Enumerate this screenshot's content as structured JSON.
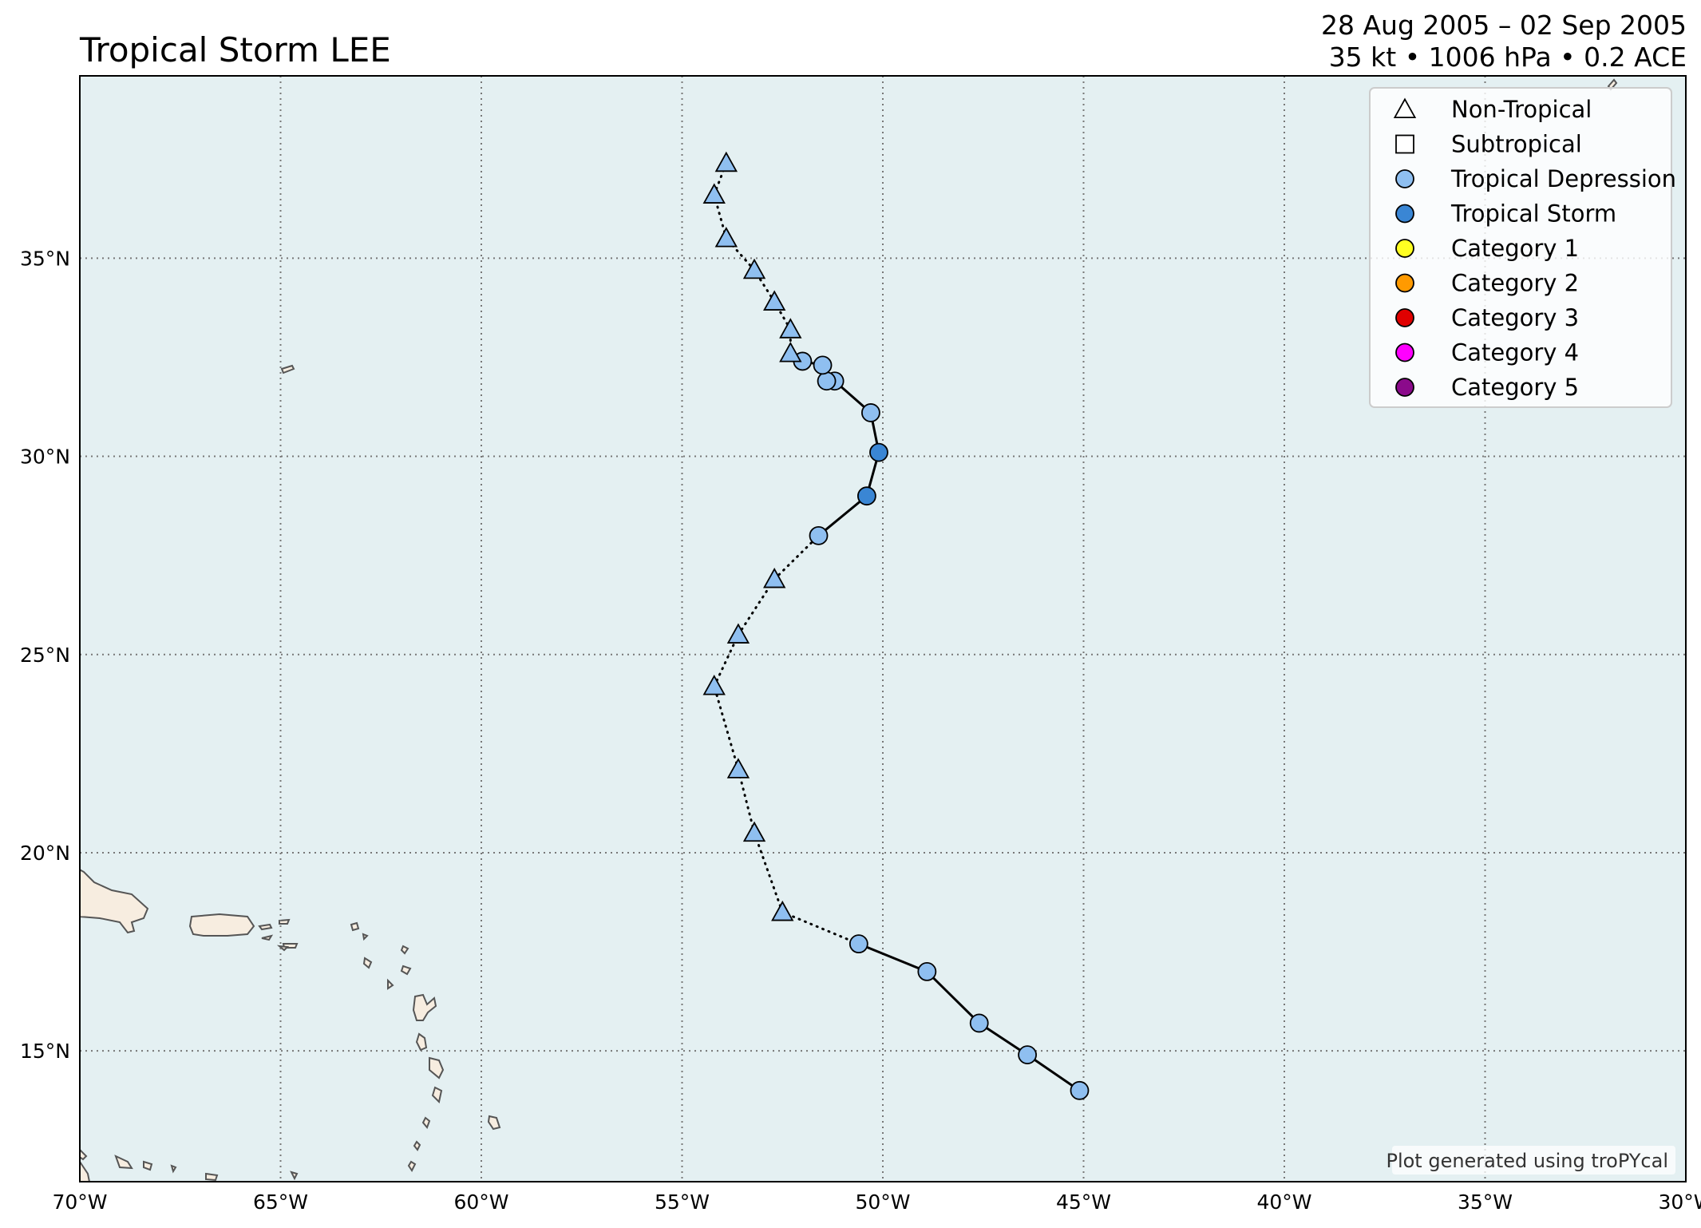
{
  "header": {
    "title": "Tropical Storm LEE",
    "date_range": "28 Aug 2005 – 02 Sep 2005",
    "stats": "35 kt • 1006 hPa • 0.2 ACE"
  },
  "credit": "Plot generated using troPYcal",
  "colors": {
    "ocean": "#e4f0f2",
    "land": "#f7ede0",
    "coast": "#555555",
    "grid": "#777777",
    "track": "#000000"
  },
  "map": {
    "lon_range": [
      -70,
      -30
    ],
    "lat_range": [
      11.7,
      39.6
    ],
    "lon_ticks": [
      {
        "value": -70,
        "label": "70°W"
      },
      {
        "value": -65,
        "label": "65°W"
      },
      {
        "value": -60,
        "label": "60°W"
      },
      {
        "value": -55,
        "label": "55°W"
      },
      {
        "value": -50,
        "label": "50°W"
      },
      {
        "value": -45,
        "label": "45°W"
      },
      {
        "value": -40,
        "label": "40°W"
      },
      {
        "value": -35,
        "label": "35°W"
      },
      {
        "value": -30,
        "label": "30°W"
      }
    ],
    "lat_ticks": [
      {
        "value": 15,
        "label": "15°N"
      },
      {
        "value": 20,
        "label": "20°N"
      },
      {
        "value": 25,
        "label": "25°N"
      },
      {
        "value": 30,
        "label": "30°N"
      },
      {
        "value": 35,
        "label": "35°N"
      }
    ],
    "grid": true
  },
  "legend": {
    "placement": "top-right",
    "items": [
      {
        "label": "Non-Tropical",
        "marker": "triangle",
        "color": "#ffffff"
      },
      {
        "label": "Subtropical",
        "marker": "square",
        "color": "#ffffff"
      },
      {
        "label": "Tropical Depression",
        "marker": "circle",
        "color": "#8fbff0"
      },
      {
        "label": "Tropical Storm",
        "marker": "circle",
        "color": "#3a86d4"
      },
      {
        "label": "Category 1",
        "marker": "circle",
        "color": "#ffff22"
      },
      {
        "label": "Category 2",
        "marker": "circle",
        "color": "#ff9a00"
      },
      {
        "label": "Category 3",
        "marker": "circle",
        "color": "#e00000"
      },
      {
        "label": "Category 4",
        "marker": "circle",
        "color": "#ff00ff"
      },
      {
        "label": "Category 5",
        "marker": "circle",
        "color": "#8b0a8b"
      }
    ]
  },
  "track": [
    {
      "lon": -45.1,
      "lat": 14.0,
      "type": "TD"
    },
    {
      "lon": -46.4,
      "lat": 14.9,
      "type": "TD"
    },
    {
      "lon": -47.6,
      "lat": 15.7,
      "type": "TD"
    },
    {
      "lon": -48.9,
      "lat": 17.0,
      "type": "TD"
    },
    {
      "lon": -50.6,
      "lat": 17.7,
      "type": "TD"
    },
    {
      "lon": -52.5,
      "lat": 18.5,
      "type": "NT"
    },
    {
      "lon": -53.2,
      "lat": 20.5,
      "type": "NT"
    },
    {
      "lon": -53.6,
      "lat": 22.1,
      "type": "NT"
    },
    {
      "lon": -54.2,
      "lat": 24.2,
      "type": "NT"
    },
    {
      "lon": -53.6,
      "lat": 25.5,
      "type": "NT"
    },
    {
      "lon": -52.7,
      "lat": 26.9,
      "type": "NT"
    },
    {
      "lon": -51.6,
      "lat": 28.0,
      "type": "TD"
    },
    {
      "lon": -50.4,
      "lat": 29.0,
      "type": "TS"
    },
    {
      "lon": -50.1,
      "lat": 30.1,
      "type": "TS"
    },
    {
      "lon": -50.3,
      "lat": 31.1,
      "type": "TD"
    },
    {
      "lon": -51.2,
      "lat": 31.9,
      "type": "TD"
    },
    {
      "lon": -51.4,
      "lat": 31.9,
      "type": "TD"
    },
    {
      "lon": -51.5,
      "lat": 32.3,
      "type": "TD"
    },
    {
      "lon": -52.0,
      "lat": 32.4,
      "type": "TD"
    },
    {
      "lon": -52.3,
      "lat": 32.6,
      "type": "NT"
    },
    {
      "lon": -52.3,
      "lat": 33.2,
      "type": "NT"
    },
    {
      "lon": -52.7,
      "lat": 33.9,
      "type": "NT"
    },
    {
      "lon": -53.2,
      "lat": 34.7,
      "type": "NT"
    },
    {
      "lon": -53.9,
      "lat": 35.5,
      "type": "NT"
    },
    {
      "lon": -54.2,
      "lat": 36.6,
      "type": "NT"
    },
    {
      "lon": -53.9,
      "lat": 37.4,
      "type": "NT"
    }
  ]
}
